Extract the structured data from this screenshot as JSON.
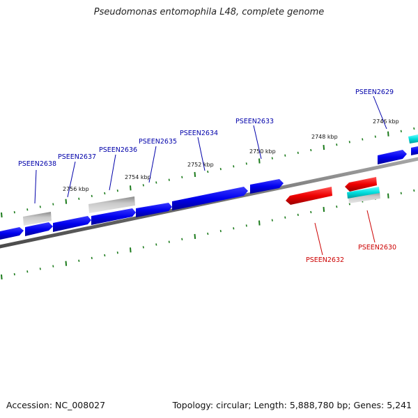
{
  "title": "Pseudomonas entomophila L48, complete genome",
  "footer": {
    "accession": "Accession: NC_008027",
    "topology": "Topology: circular; Length: 5,888,780 bp; Genes: 5,241"
  },
  "colors": {
    "forward_gene": "#0000ee",
    "reverse_gene": "#ee0000",
    "other_gene": "#aaaaaa",
    "rna_gene": "#00cccc",
    "tick": "#1a7a1a",
    "backbone": "#7f7f7f",
    "forward_label": "#0000aa",
    "reverse_label": "#cc0000"
  },
  "tick_labels": [
    "2756 kbp",
    "2754 kbp",
    "2752 kbp",
    "2750 kbp",
    "2748 kbp",
    "2746 kbp"
  ],
  "gene_labels": [
    {
      "name": "PSEEN2638",
      "strand": "forward"
    },
    {
      "name": "PSEEN2637",
      "strand": "forward"
    },
    {
      "name": "PSEEN2636",
      "strand": "forward"
    },
    {
      "name": "PSEEN2635",
      "strand": "forward"
    },
    {
      "name": "PSEEN2634",
      "strand": "forward"
    },
    {
      "name": "PSEEN2633",
      "strand": "forward"
    },
    {
      "name": "PSEEN2629",
      "strand": "forward"
    },
    {
      "name": "PSEEN2632",
      "strand": "reverse"
    },
    {
      "name": "PSEEN2630",
      "strand": "reverse"
    }
  ]
}
